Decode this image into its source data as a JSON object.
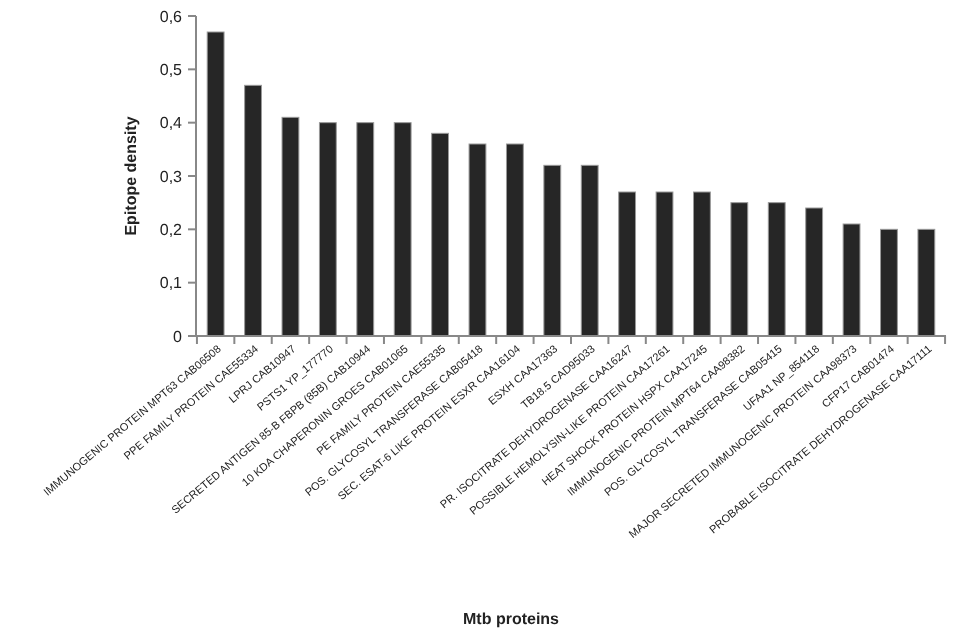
{
  "chart_data": {
    "type": "bar",
    "xlabel": "Mtb proteins",
    "ylabel": "Epitope density",
    "categories": [
      "IMMUNOGENIC PROTEIN MPT63 CAB06508",
      "PPE FAMILY PROTEIN CAE55334",
      "LPRJ CAB10947",
      "PSTS1 YP_177770",
      "SECRETED ANTIGEN 85-B FBPB (85B) CAB10944",
      "10 KDA CHAPERONIN GROES CAB01065",
      "PE FAMILY PROTEIN CAE55335",
      "POS. GLYCOSYL TRANSFERASE CAB05418",
      "SEC. ESAT-6 LIKE PROTEIN ESXR CAA16104",
      "ESXH CAA17363",
      "TB18.5 CAD95033",
      "PR. ISOCITRATE DEHYDROGENASE CAA16247",
      "POSSIBLE HEMOLYSIN-LIKE PROTEIN CAA17261",
      "HEAT SHOCK PROTEIN HSPX CAA17245",
      "IMMUNOGENIC PROTEIN MPT64 CAA98382",
      "POS. GLYCOSYL TRANSFERASE CAB05415",
      "UFAA1 NP_854118",
      "MAJOR SECRETED IMMUNOGENIC PROTEIN CAA98373",
      "CFP17 CAB01474",
      "PROBABLE ISOCITRATE DEHYDROGENASE CAA17111"
    ],
    "values": [
      0.57,
      0.47,
      0.41,
      0.4,
      0.4,
      0.4,
      0.38,
      0.36,
      0.36,
      0.32,
      0.32,
      0.27,
      0.27,
      0.27,
      0.25,
      0.25,
      0.24,
      0.21,
      0.2,
      0.2
    ],
    "color": "#262626",
    "ylim": [
      0,
      0.6
    ],
    "yticks": [
      0,
      {
        "value": 0.1,
        "label": "0,1"
      },
      {
        "value": 0.2,
        "label": "0,2"
      },
      {
        "value": 0.3,
        "label": "0,3"
      },
      {
        "value": 0.4,
        "label": "0,4"
      },
      {
        "value": 0.5,
        "label": "0,5"
      },
      {
        "value": 0.6,
        "label": "0,6"
      }
    ]
  }
}
